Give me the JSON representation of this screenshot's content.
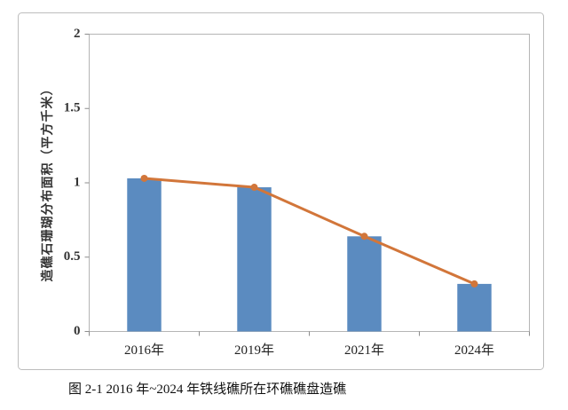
{
  "chart_data": {
    "type": "bar",
    "categories": [
      "2016年",
      "2019年",
      "2021年",
      "2024年"
    ],
    "series": [
      {
        "type": "bar",
        "values": [
          1.03,
          0.97,
          0.64,
          0.32
        ],
        "color": "#5b8bc0"
      },
      {
        "type": "line",
        "values": [
          1.03,
          0.97,
          0.64,
          0.32
        ],
        "color": "#d2763a"
      }
    ],
    "ylabel": "造礁石珊瑚分布面积（平方千米）",
    "ylim": [
      0,
      2
    ],
    "yticks": [
      0,
      0.5,
      1,
      1.5,
      2
    ],
    "ytick_labels": [
      "0",
      "0.5",
      "1",
      "1.5",
      "2"
    ],
    "grid": false,
    "legend": "none"
  },
  "caption": "图 2-1 2016 年~2024 年铁线礁所在环礁礁盘造礁"
}
